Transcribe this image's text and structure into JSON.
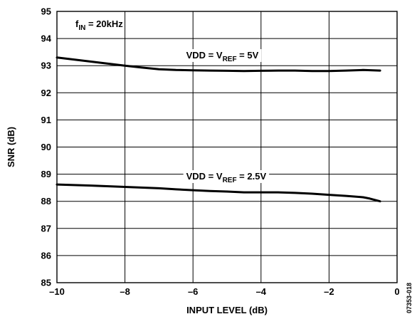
{
  "chart_data": {
    "type": "line",
    "xlabel": "INPUT LEVEL (dB)",
    "ylabel": "SNR (dB)",
    "xlim": [
      -10,
      0
    ],
    "ylim": [
      85,
      95
    ],
    "grid": true,
    "x_ticks": [
      {
        "value": -10,
        "label": "–10"
      },
      {
        "value": -8,
        "label": "–8"
      },
      {
        "value": -6,
        "label": "–6"
      },
      {
        "value": -4,
        "label": "–4"
      },
      {
        "value": -2,
        "label": "–2"
      },
      {
        "value": 0,
        "label": "0"
      }
    ],
    "y_ticks": [
      85,
      86,
      87,
      88,
      89,
      90,
      91,
      92,
      93,
      94,
      95
    ],
    "annotations": {
      "condition": {
        "base": "f",
        "sub": "IN",
        "rest": " = 20kHz"
      },
      "figure_code": "07353-018"
    },
    "series": [
      {
        "label": {
          "pre": "VDD = V",
          "sub": "REF",
          "post": " = 5V"
        },
        "color": "#000000",
        "x": [
          -10,
          -9,
          -8,
          -7.5,
          -7,
          -6.5,
          -6,
          -5.5,
          -5,
          -4.5,
          -4,
          -3.5,
          -3,
          -2.5,
          -2,
          -1.5,
          -1,
          -0.5
        ],
        "y": [
          93.3,
          93.15,
          93.0,
          92.93,
          92.87,
          92.84,
          92.83,
          92.82,
          92.81,
          92.8,
          92.81,
          92.82,
          92.82,
          92.8,
          92.8,
          92.82,
          92.84,
          92.82
        ]
      },
      {
        "label": {
          "pre": "VDD = V",
          "sub": "REF",
          "post": " = 2.5V"
        },
        "color": "#000000",
        "x": [
          -10,
          -9,
          -8,
          -7,
          -6.5,
          -6,
          -5.5,
          -5,
          -4.5,
          -4,
          -3.5,
          -3,
          -2.5,
          -2,
          -1.5,
          -1,
          -0.8,
          -0.5
        ],
        "y": [
          88.62,
          88.58,
          88.53,
          88.48,
          88.44,
          88.41,
          88.38,
          88.36,
          88.33,
          88.33,
          88.33,
          88.31,
          88.28,
          88.24,
          88.2,
          88.15,
          88.1,
          88.0
        ]
      }
    ]
  }
}
